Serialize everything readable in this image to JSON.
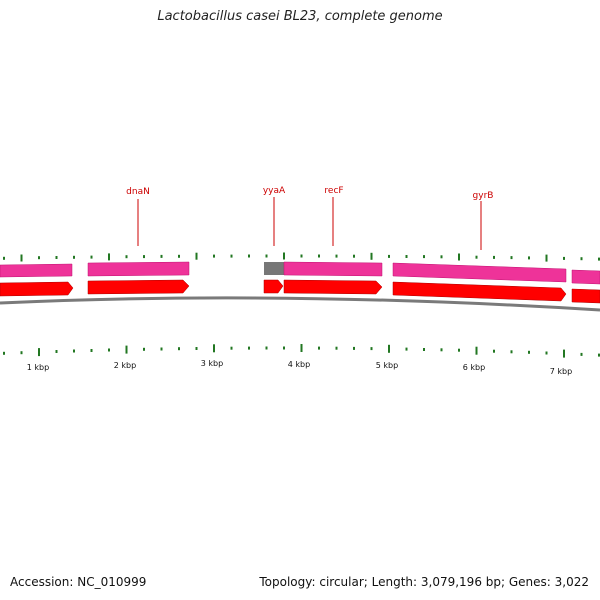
{
  "title": "Lactobacillus casei BL23, complete genome",
  "footer": {
    "accession": "Accession: NC_010999",
    "summary": "Topology: circular; Length: 3,079,196 bp; Genes: 3,022"
  },
  "colors": {
    "pink_track": "#ee3399",
    "red_track": "#ff0000",
    "gray_segment": "#777777",
    "backbone": "#7a7a7a",
    "tick": "#227722",
    "gene_label": "#cc0000"
  },
  "gene_labels": [
    {
      "name": "dnaN"
    },
    {
      "name": "yyaA"
    },
    {
      "name": "recF"
    },
    {
      "name": "gyrB"
    }
  ],
  "kbp_labels": [
    "1 kbp",
    "2 kbp",
    "3 kbp",
    "4 kbp",
    "5 kbp",
    "6 kbp",
    "7 kbp"
  ]
}
